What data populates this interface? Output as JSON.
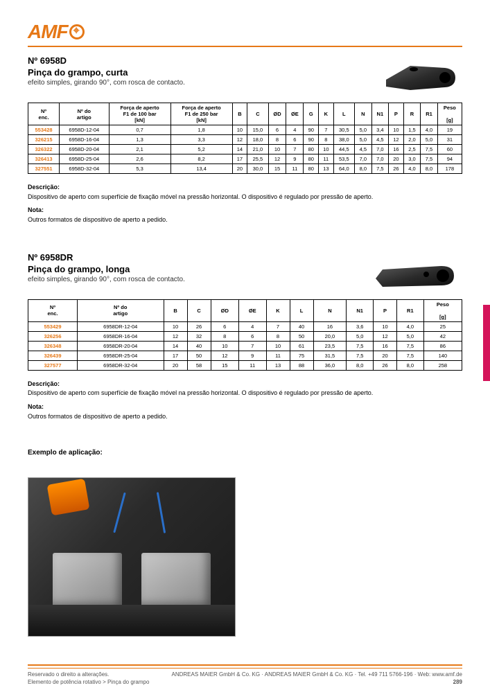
{
  "brand": "AMF",
  "orange": "#e67817",
  "magenta": "#d4145a",
  "section1": {
    "no": "Nº 6958D",
    "title": "Pinça do grampo, curta",
    "sub": "efeito simples, girando 90°, com rosca de contacto.",
    "table": {
      "headers": [
        "Nº\nenc.",
        "Nº do\nartigo",
        "Força de aperto\nF1 de 100 bar\n[kN]",
        "Força de aperto\nF1 de 250 bar\n[kN]",
        "B",
        "C",
        "ØD",
        "ØE",
        "G",
        "K",
        "L",
        "N",
        "N1",
        "P",
        "R",
        "R1",
        "Peso\n\n[g]"
      ],
      "rows": [
        [
          "553428",
          "6958D-12-04",
          "0,7",
          "1,8",
          "10",
          "15,0",
          "6",
          "4",
          "90",
          "7",
          "30,5",
          "5,0",
          "3,4",
          "10",
          "1,5",
          "4,0",
          "19"
        ],
        [
          "326215",
          "6958D-16-04",
          "1,3",
          "3,3",
          "12",
          "18,0",
          "8",
          "6",
          "90",
          "8",
          "38,0",
          "5,0",
          "4,5",
          "12",
          "2,0",
          "5,0",
          "31"
        ],
        [
          "326322",
          "6958D-20-04",
          "2,1",
          "5,2",
          "14",
          "21,0",
          "10",
          "7",
          "80",
          "10",
          "44,5",
          "4,5",
          "7,0",
          "16",
          "2,5",
          "7,5",
          "60"
        ],
        [
          "326413",
          "6958D-25-04",
          "2,6",
          "8,2",
          "17",
          "25,5",
          "12",
          "9",
          "80",
          "11",
          "53,5",
          "7,0",
          "7,0",
          "20",
          "3,0",
          "7,5",
          "94"
        ],
        [
          "327551",
          "6958D-32-04",
          "5,3",
          "13,4",
          "20",
          "30,0",
          "15",
          "11",
          "80",
          "13",
          "64,0",
          "8,0",
          "7,5",
          "26",
          "4,0",
          "8,0",
          "178"
        ]
      ]
    },
    "d1h": "Descrição:",
    "d1": "Dispositivo de aperto com superfície de fixação móvel na pressão horizontal. O dispositivo é regulado por pressão de aperto.",
    "d2h": "Nota:",
    "d2": "Outros formatos de dispositivo de aperto a pedido."
  },
  "section2": {
    "no": "Nº 6958DR",
    "title": "Pinça do grampo, longa",
    "sub": "efeito simples, girando 90°, com rosca de contacto.",
    "table": {
      "headers": [
        "Nº\nenc.",
        "Nº do\nartigo",
        "B",
        "C",
        "ØD",
        "ØE",
        "K",
        "L",
        "N",
        "N1",
        "P",
        "R1",
        "Peso\n\n[g]"
      ],
      "rows": [
        [
          "553429",
          "6958DR-12-04",
          "10",
          "26",
          "6",
          "4",
          "7",
          "40",
          "16",
          "3,6",
          "10",
          "4,0",
          "25"
        ],
        [
          "326256",
          "6958DR-16-04",
          "12",
          "32",
          "8",
          "6",
          "8",
          "50",
          "20,0",
          "5,0",
          "12",
          "5,0",
          "42"
        ],
        [
          "326348",
          "6958DR-20-04",
          "14",
          "40",
          "10",
          "7",
          "10",
          "61",
          "23,5",
          "7,5",
          "16",
          "7,5",
          "86"
        ],
        [
          "326439",
          "6958DR-25-04",
          "17",
          "50",
          "12",
          "9",
          "11",
          "75",
          "31,5",
          "7,5",
          "20",
          "7,5",
          "140"
        ],
        [
          "327577",
          "6958DR-32-04",
          "20",
          "58",
          "15",
          "11",
          "13",
          "88",
          "36,0",
          "8,0",
          "26",
          "8,0",
          "258"
        ]
      ]
    },
    "d1h": "Descrição:",
    "d1": "Dispositivo de aperto com superfície de fixação móvel na pressão horizontal. O dispositivo é regulado por pressão de aperto.",
    "d2h": "Nota:",
    "d2": "Outros formatos de dispositivo de aperto a pedido."
  },
  "app_caption": "Exemplo de aplicação:",
  "footer": {
    "left": "Reservado o direito a alterações.",
    "center": "ANDREAS MAIER GmbH & Co. KG · ANDREAS MAIER GmbH & Co. KG · Tel. +49 711 5766-196 · Web: www.amf.de",
    "right": "Elemento de potência rotativo > Pinça do grampo",
    "page": "289"
  }
}
